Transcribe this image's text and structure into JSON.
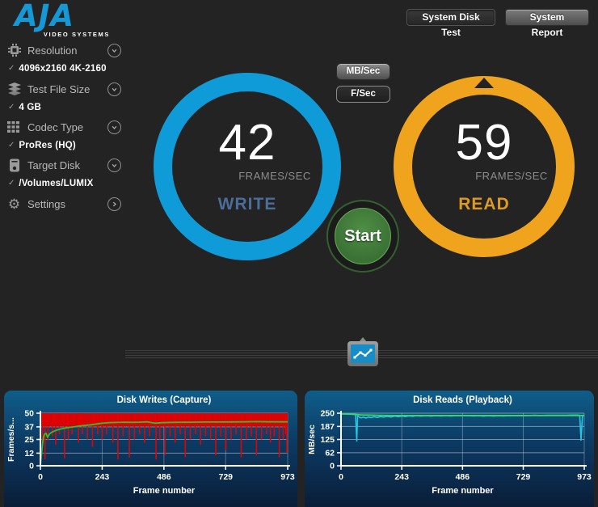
{
  "app": {
    "logo_text": "AJA",
    "logo_sub": "VIDEO SYSTEMS",
    "background": "#232323",
    "brand_blue": "#1499d6"
  },
  "header": {
    "system_disk_test_label": "System Disk Test",
    "system_report_label": "System Report"
  },
  "sidebar": {
    "items": [
      {
        "label": "Resolution",
        "value": "4096x2160 4K-2160",
        "icon": "chip-icon",
        "chevron": "down",
        "check": "✓"
      },
      {
        "label": "Test File Size",
        "value": "4 GB",
        "icon": "layers-icon",
        "chevron": "down",
        "check": "✓"
      },
      {
        "label": "Codec Type",
        "value": "ProRes (HQ)",
        "icon": "grid-icon",
        "chevron": "down",
        "check": "✓"
      },
      {
        "label": "Target Disk",
        "value": "/Volumes/LUMIX",
        "icon": "disk-icon",
        "chevron": "down",
        "check": "✓"
      },
      {
        "label": "Settings",
        "value": "",
        "icon": "gear-icon",
        "chevron": "right",
        "check": ""
      }
    ],
    "gear_glyph": "⚙"
  },
  "unit_toggle": {
    "mb_label": "MB/Sec",
    "f_label": "F/Sec",
    "selected": "F/Sec"
  },
  "gauges": {
    "write": {
      "value": "42",
      "unit": "FRAMES/SEC",
      "label": "WRITE",
      "ring_color": "#0f9bd7",
      "label_color": "#4a6d99"
    },
    "read": {
      "value": "59",
      "unit": "FRAMES/SEC",
      "label": "READ",
      "ring_color": "#f0a41e",
      "label_color": "#dd9a1f"
    }
  },
  "start_button": {
    "label": "Start",
    "color": "#3a7135"
  },
  "chart_data": [
    {
      "type": "area",
      "title": "Disk Writes (Capture)",
      "xlabel": "Frame number",
      "ylabel": "Frames/s...",
      "xlim": [
        0,
        973
      ],
      "ylim": [
        0,
        50
      ],
      "xticks": [
        0,
        243,
        486,
        729,
        973
      ],
      "yticks": [
        0,
        12,
        25,
        37,
        50
      ],
      "grid": true,
      "legend": "none",
      "series": [
        {
          "name": "instantaneous-write-rate",
          "draw": "spike-band",
          "color": "#e60000",
          "top": 50,
          "base": 38,
          "spikes": [
            [
              8,
              20
            ],
            [
              18,
              6
            ],
            [
              30,
              24
            ],
            [
              48,
              28
            ],
            [
              60,
              20
            ],
            [
              75,
              30
            ],
            [
              95,
              7
            ],
            [
              110,
              25
            ],
            [
              125,
              30
            ],
            [
              150,
              22
            ],
            [
              165,
              30
            ],
            [
              185,
              25
            ],
            [
              205,
              18
            ],
            [
              225,
              30
            ],
            [
              243,
              25
            ],
            [
              260,
              30
            ],
            [
              285,
              22
            ],
            [
              305,
              6
            ],
            [
              325,
              28
            ],
            [
              350,
              8
            ],
            [
              370,
              25
            ],
            [
              390,
              30
            ],
            [
              410,
              22
            ],
            [
              430,
              28
            ],
            [
              455,
              6
            ],
            [
              470,
              25
            ],
            [
              490,
              10
            ],
            [
              510,
              28
            ],
            [
              530,
              22
            ],
            [
              550,
              30
            ],
            [
              570,
              8
            ],
            [
              590,
              25
            ],
            [
              610,
              30
            ],
            [
              630,
              20
            ],
            [
              650,
              28
            ],
            [
              670,
              25
            ],
            [
              690,
              10
            ],
            [
              710,
              28
            ],
            [
              730,
              15
            ],
            [
              750,
              25
            ],
            [
              770,
              30
            ],
            [
              790,
              8
            ],
            [
              810,
              25
            ],
            [
              830,
              28
            ],
            [
              850,
              10
            ],
            [
              870,
              25
            ],
            [
              890,
              30
            ],
            [
              905,
              22
            ],
            [
              920,
              28
            ],
            [
              940,
              8
            ],
            [
              955,
              25
            ],
            [
              965,
              30
            ],
            [
              970,
              12
            ]
          ]
        },
        {
          "name": "average-write-rate",
          "draw": "line",
          "color": "#2bc32b",
          "width": 1.8,
          "points": [
            [
              0,
              0
            ],
            [
              4,
              10
            ],
            [
              8,
              20
            ],
            [
              12,
              27
            ],
            [
              16,
              30
            ],
            [
              22,
              31
            ],
            [
              28,
              27
            ],
            [
              35,
              30
            ],
            [
              45,
              32
            ],
            [
              60,
              33.5
            ],
            [
              80,
              35
            ],
            [
              100,
              36
            ],
            [
              130,
              37
            ],
            [
              160,
              38
            ],
            [
              200,
              39
            ],
            [
              243,
              40.5
            ],
            [
              270,
              41
            ],
            [
              300,
              41.2
            ],
            [
              330,
              41.5
            ],
            [
              360,
              41.3
            ],
            [
              390,
              41.5
            ],
            [
              420,
              41.8
            ],
            [
              450,
              40.5
            ],
            [
              480,
              41
            ],
            [
              520,
              41.3
            ],
            [
              560,
              41.4
            ],
            [
              600,
              41.5
            ],
            [
              650,
              41.6
            ],
            [
              700,
              41.6
            ],
            [
              750,
              41.7
            ],
            [
              800,
              41.8
            ],
            [
              850,
              42
            ],
            [
              900,
              41.8
            ],
            [
              940,
              41.8
            ],
            [
              973,
              41.8
            ]
          ]
        }
      ]
    },
    {
      "type": "line",
      "title": "Disk Reads (Playback)",
      "xlabel": "Frame number",
      "ylabel": "MB/sec",
      "xlim": [
        0,
        973
      ],
      "ylim": [
        0,
        250
      ],
      "xticks": [
        0,
        243,
        486,
        729,
        973
      ],
      "yticks": [
        0,
        62,
        125,
        187,
        250
      ],
      "grid": true,
      "legend": "none",
      "series": [
        {
          "name": "instantaneous-read-rate",
          "draw": "line",
          "color": "#23c8e0",
          "width": 1.6,
          "points": [
            [
              0,
              246
            ],
            [
              25,
              246
            ],
            [
              50,
              245
            ],
            [
              58,
              244
            ],
            [
              63,
              118
            ],
            [
              66,
              238
            ],
            [
              72,
              232
            ],
            [
              80,
              228
            ],
            [
              90,
              231
            ],
            [
              100,
              227
            ],
            [
              110,
              232
            ],
            [
              120,
              229
            ],
            [
              132,
              233
            ],
            [
              145,
              230
            ],
            [
              158,
              234
            ],
            [
              170,
              231
            ],
            [
              185,
              235
            ],
            [
              200,
              232
            ],
            [
              215,
              236
            ],
            [
              230,
              233
            ],
            [
              243,
              236
            ],
            [
              258,
              234
            ],
            [
              272,
              237
            ],
            [
              288,
              235
            ],
            [
              300,
              238
            ],
            [
              320,
              236
            ],
            [
              340,
              238
            ],
            [
              360,
              236
            ],
            [
              380,
              238
            ],
            [
              400,
              237
            ],
            [
              420,
              239
            ],
            [
              440,
              237
            ],
            [
              460,
              239
            ],
            [
              486,
              238
            ],
            [
              510,
              239
            ],
            [
              530,
              237
            ],
            [
              550,
              239
            ],
            [
              570,
              236
            ],
            [
              590,
              238
            ],
            [
              610,
              236
            ],
            [
              630,
              238
            ],
            [
              650,
              237
            ],
            [
              670,
              239
            ],
            [
              690,
              238
            ],
            [
              710,
              239
            ],
            [
              730,
              238
            ],
            [
              750,
              239
            ],
            [
              775,
              240
            ],
            [
              800,
              239
            ],
            [
              825,
              240
            ],
            [
              850,
              240
            ],
            [
              875,
              240
            ],
            [
              900,
              240
            ],
            [
              925,
              241
            ],
            [
              945,
              241
            ],
            [
              955,
              240
            ],
            [
              960,
              122
            ],
            [
              966,
              239
            ],
            [
              973,
              241
            ]
          ]
        },
        {
          "name": "average-read-rate",
          "draw": "line",
          "color": "#35d964",
          "width": 1.8,
          "points": [
            [
              0,
              247
            ],
            [
              30,
              246
            ],
            [
              60,
              244
            ],
            [
              80,
              242
            ],
            [
              110,
              241
            ],
            [
              150,
              240
            ],
            [
              200,
              239
            ],
            [
              250,
              239
            ],
            [
              300,
              239
            ],
            [
              350,
              239
            ],
            [
              400,
              239
            ],
            [
              450,
              239
            ],
            [
              500,
              239
            ],
            [
              550,
              239
            ],
            [
              600,
              239
            ],
            [
              650,
              239
            ],
            [
              700,
              239
            ],
            [
              750,
              239
            ],
            [
              800,
              239
            ],
            [
              850,
              239
            ],
            [
              900,
              239
            ],
            [
              950,
              239
            ],
            [
              973,
              239
            ]
          ]
        }
      ]
    }
  ]
}
